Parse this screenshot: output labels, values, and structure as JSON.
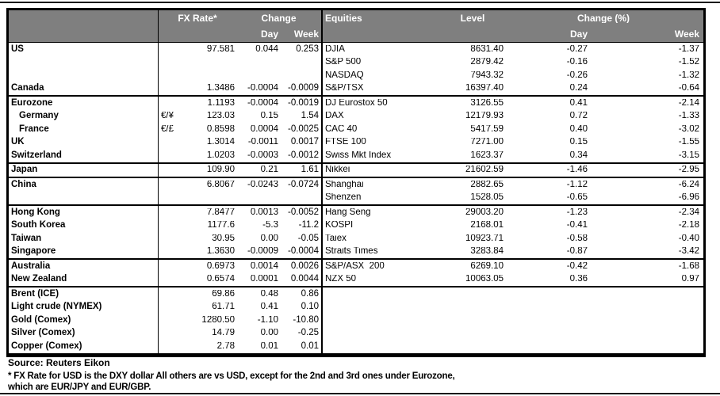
{
  "header": {
    "fx_rate": "FX Rate*",
    "change": "Change",
    "day": "Day",
    "week": "Week",
    "equities": "Equities",
    "level": "Level",
    "change_pct": "Change (%)",
    "eq_day": "Day",
    "eq_week": "Week"
  },
  "colors": {
    "header_bg": "#7f7f7f",
    "header_text": "#ffffff",
    "border": "#000000"
  },
  "sections": [
    {
      "rows": [
        {
          "label": "US",
          "sym": "",
          "fx": "97.581",
          "day": "0.044",
          "week": "0.253",
          "equity": "DJIA",
          "level": "8631.40",
          "eday": "-0.27",
          "eweek": "-1.37"
        },
        {
          "label": "",
          "sym": "",
          "fx": "",
          "day": "",
          "week": "",
          "equity": "S&P 500",
          "level": "2879.42",
          "eday": "-0.16",
          "eweek": "-1.52"
        },
        {
          "label": "",
          "sym": "",
          "fx": "",
          "day": "",
          "week": "",
          "equity": "NASDAQ",
          "level": "7943.32",
          "eday": "-0.26",
          "eweek": "-1.32"
        },
        {
          "label": "Canada",
          "sym": "",
          "fx": "1.3486",
          "day": "-0.0004",
          "week": "-0.0009",
          "equity": "S&P/TSX",
          "level": "16397.40",
          "eday": "0.24",
          "eweek": "-0.64"
        }
      ]
    },
    {
      "rows": [
        {
          "label": "Eurozone",
          "sym": "",
          "fx": "1.1193",
          "day": "-0.0004",
          "week": "-0.0019",
          "equity": "DJ Eurostox 50",
          "level": "3126.55",
          "eday": "0.41",
          "eweek": "-2.14"
        },
        {
          "label": "Germany",
          "indent": true,
          "sym": "€/¥",
          "fx": "123.03",
          "day": "0.15",
          "week": "1.54",
          "equity": "DAX",
          "level": "12179.93",
          "eday": "0.72",
          "eweek": "-1.33"
        },
        {
          "label": "France",
          "indent": true,
          "sym": "€/£",
          "fx": "0.8598",
          "day": "0.0004",
          "week": "-0.0025",
          "equity": "CAC 40",
          "level": "5417.59",
          "eday": "0.40",
          "eweek": "-3.02"
        },
        {
          "label": "UK",
          "sym": "",
          "fx": "1.3014",
          "day": "-0.0011",
          "week": "0.0017",
          "equity": "FTSE 100",
          "level": "7271.00",
          "eday": "0.15",
          "eweek": "-1.55"
        },
        {
          "label": "Switzerland",
          "sym": "",
          "fx": "1.0203",
          "day": "-0.0003",
          "week": "-0.0012",
          "equity": "Swiss Mkt Index",
          "level": "1623.37",
          "eday": "0.34",
          "eweek": "-3.15"
        }
      ]
    },
    {
      "rows": [
        {
          "label": "Japan",
          "sym": "",
          "fx": "109.90",
          "day": "0.21",
          "week": "1.61",
          "equity": "Nikkei",
          "level": "21602.59",
          "eday": "-1.46",
          "eweek": "-2.95"
        }
      ]
    },
    {
      "rows": [
        {
          "label": "China",
          "sym": "",
          "fx": "6.8067",
          "day": "-0.0243",
          "week": "-0.0724",
          "equity": "Shanghai",
          "level": "2882.65",
          "eday": "-1.12",
          "eweek": "-6.24"
        },
        {
          "label": "",
          "sym": "",
          "fx": "",
          "day": "",
          "week": "",
          "equity": "Shenzen",
          "level": "1528.05",
          "eday": "-0.65",
          "eweek": "-6.96"
        }
      ]
    },
    {
      "rows": [
        {
          "label": "Hong Kong",
          "sym": "",
          "fx": "7.8477",
          "day": "0.0013",
          "week": "-0.0052",
          "equity": "Hang Seng",
          "level": "29003.20",
          "eday": "-1.23",
          "eweek": "-2.34"
        },
        {
          "label": "South Korea",
          "sym": "",
          "fx": "1177.6",
          "day": "-5.3",
          "week": "-11.2",
          "equity": "KOSPI",
          "level": "2168.01",
          "eday": "-0.41",
          "eweek": "-2.18"
        },
        {
          "label": "Taiwan",
          "sym": "",
          "fx": "30.95",
          "day": "0.00",
          "week": "-0.05",
          "equity": "Taiex",
          "level": "10923.71",
          "eday": "-0.58",
          "eweek": "-0.40"
        },
        {
          "label": "Singapore",
          "sym": "",
          "fx": "1.3630",
          "day": "-0.0009",
          "week": "-0.0004",
          "equity": "Straits Times",
          "level": "3283.84",
          "eday": "-0.87",
          "eweek": "-3.42"
        }
      ]
    },
    {
      "rows": [
        {
          "label": "Australia",
          "sym": "",
          "fx": "0.6973",
          "day": "0.0014",
          "week": "0.0026",
          "equity": "S&P/ASX  200",
          "level": "6269.10",
          "eday": "-0.42",
          "eweek": "-1.68"
        },
        {
          "label": "New Zealand",
          "sym": "",
          "fx": "0.6574",
          "day": "0.0001",
          "week": "0.0044",
          "equity": "NZX 50",
          "level": "10063.05",
          "eday": "0.36",
          "eweek": "0.97"
        }
      ]
    },
    {
      "rows": [
        {
          "label": "Brent (ICE)",
          "sym": "",
          "fx": "69.86",
          "day": "0.48",
          "week": "0.86",
          "equity": "",
          "level": "",
          "eday": "",
          "eweek": ""
        },
        {
          "label": "Light crude (NYMEX)",
          "sym": "",
          "fx": "61.71",
          "day": "0.41",
          "week": "0.10",
          "equity": "",
          "level": "",
          "eday": "",
          "eweek": ""
        },
        {
          "label": "Gold (Comex)",
          "sym": "",
          "fx": "1280.50",
          "day": "-1.10",
          "week": "-10.80",
          "equity": "",
          "level": "",
          "eday": "",
          "eweek": ""
        },
        {
          "label": "Silver (Comex)",
          "sym": "",
          "fx": "14.79",
          "day": "0.00",
          "week": "-0.25",
          "equity": "",
          "level": "",
          "eday": "",
          "eweek": ""
        },
        {
          "label": "Copper (Comex)",
          "sym": "",
          "fx": "2.78",
          "day": "0.01",
          "week": "0.01",
          "equity": "",
          "level": "",
          "eday": "",
          "eweek": ""
        }
      ]
    }
  ],
  "footer": {
    "source": "Source:  Reuters Eikon",
    "note1": "* FX Rate for USD is the DXY dollar  All others are vs USD, except for the 2nd and 3rd ones under Eurozone,",
    "note2": " which are EUR/JPY and EUR/GBP."
  }
}
